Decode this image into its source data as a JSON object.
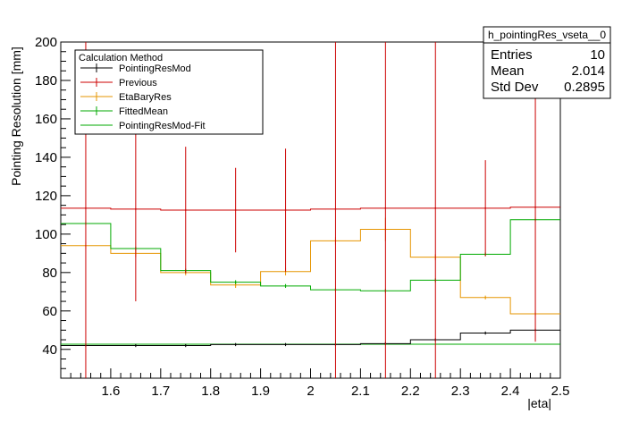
{
  "chart_data": {
    "type": "line",
    "subtype": "step-histogram-with-error-bars",
    "title": "",
    "xlabel": "|eta|",
    "ylabel": "Pointing Resolution [mm]",
    "xlim": [
      1.5,
      2.5
    ],
    "ylim": [
      25,
      200
    ],
    "xticks": [
      1.6,
      1.7,
      1.8,
      1.9,
      2,
      2.1,
      2.2,
      2.3,
      2.4,
      2.5
    ],
    "xtick_labels": [
      "1.6",
      "1.7",
      "1.8",
      "1.9",
      "2",
      "2.1",
      "2.2",
      "2.3",
      "2.4",
      "2.5"
    ],
    "yticks": [
      40,
      60,
      80,
      100,
      120,
      140,
      160,
      180,
      200
    ],
    "ytick_labels": [
      "40",
      "60",
      "80",
      "100",
      "120",
      "140",
      "160",
      "180",
      "200"
    ],
    "bin_edges": [
      1.5,
      1.6,
      1.7,
      1.8,
      1.9,
      2.0,
      2.1,
      2.2,
      2.3,
      2.4,
      2.5
    ],
    "bin_centers": [
      1.55,
      1.65,
      1.75,
      1.85,
      1.95,
      2.05,
      2.15,
      2.25,
      2.35,
      2.45
    ],
    "series": [
      {
        "name": "PointingResMod",
        "color": "#000000",
        "values": [
          42,
          42,
          42,
          42.5,
          42.5,
          42.5,
          43,
          45,
          48.5,
          50
        ],
        "errors": [
          0.8,
          0.8,
          0.8,
          0.8,
          0.8,
          0.8,
          0.8,
          0.8,
          0.8,
          0.8
        ]
      },
      {
        "name": "Previous",
        "color": "#cc0000",
        "values": [
          113.5,
          113,
          112.5,
          112.5,
          112.5,
          113,
          113.5,
          113.5,
          113.5,
          114
        ],
        "errors": [
          110,
          48,
          33,
          22,
          32,
          110,
          110,
          110,
          25,
          70
        ]
      },
      {
        "name": "EtaBaryRes",
        "color": "#e69500",
        "values": [
          94,
          90,
          80,
          73.5,
          80.5,
          96.5,
          102.5,
          88,
          67,
          58.5
        ],
        "errors": [
          2,
          2,
          1.5,
          1.5,
          2,
          2,
          6,
          1.5,
          1,
          1
        ]
      },
      {
        "name": "FittedMean",
        "color": "#00aa00",
        "values": [
          105.5,
          92.5,
          81,
          75,
          73,
          71,
          70.5,
          76,
          89.5,
          107.5
        ],
        "errors": [
          1,
          1,
          1,
          1,
          1,
          1,
          1,
          1,
          1,
          1
        ]
      },
      {
        "name": "PointingResMod-Fit",
        "color": "#00aa00",
        "constant": 42.7
      }
    ],
    "legend": {
      "title": "Calculation Method",
      "placement": "top-left",
      "entries": [
        "PointingResMod",
        "Previous",
        "EtaBaryRes",
        "FittedMean",
        "PointingResMod-Fit"
      ],
      "colors": [
        "#000000",
        "#cc0000",
        "#e69500",
        "#00aa00",
        "#00aa00"
      ]
    },
    "stats": {
      "name": "h_pointingRes_vseta__0",
      "rows": [
        {
          "label": "Entries",
          "value": "10"
        },
        {
          "label": "Mean",
          "value": "2.014"
        },
        {
          "label": "Std Dev",
          "value": "0.2895"
        }
      ]
    },
    "grid": false
  }
}
